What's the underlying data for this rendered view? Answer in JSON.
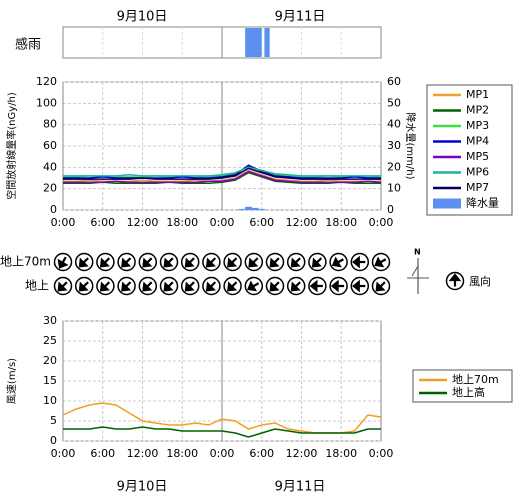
{
  "dates": [
    "9月10日",
    "9月11日"
  ],
  "chart_data": [
    {
      "type": "strip",
      "label": "感雨",
      "xlim": [
        0,
        48
      ],
      "periods": [
        [
          27.5,
          30.0
        ],
        [
          30.4,
          31.2
        ]
      ],
      "color": "#5b8ff0"
    },
    {
      "type": "line",
      "ylabel": "空間放射線量率(nGy/h)",
      "y2label": "降水量(mm/h)",
      "xlim": [
        0,
        48
      ],
      "xticks": [
        {
          "value": 0,
          "label": "0:00"
        },
        {
          "value": 6,
          "label": "6:00"
        },
        {
          "value": 12,
          "label": "12:00"
        },
        {
          "value": 18,
          "label": "18:00"
        },
        {
          "value": 24,
          "label": "0:00"
        },
        {
          "value": 30,
          "label": "6:00"
        },
        {
          "value": 36,
          "label": "12:00"
        },
        {
          "value": 42,
          "label": "18:00"
        },
        {
          "value": 48,
          "label": "0:00"
        }
      ],
      "ylim": [
        0,
        120
      ],
      "yticks": [
        0,
        20,
        40,
        60,
        80,
        100,
        120
      ],
      "y2lim": [
        0,
        60
      ],
      "y2ticks": [
        0,
        10,
        20,
        30,
        40,
        50,
        60
      ],
      "grid": true,
      "x": [
        0,
        2,
        4,
        6,
        8,
        10,
        12,
        14,
        16,
        18,
        20,
        22,
        24,
        26,
        28,
        30,
        32,
        34,
        36,
        38,
        40,
        42,
        44,
        46,
        48
      ],
      "series": [
        {
          "name": "MP1",
          "color": "#f0a030",
          "values": [
            27,
            27,
            28,
            27,
            27,
            27,
            28,
            27,
            27,
            27,
            28,
            27,
            28,
            30,
            37,
            33,
            29,
            28,
            27,
            27,
            28,
            27,
            27,
            27,
            27
          ]
        },
        {
          "name": "MP2",
          "color": "#006400",
          "values": [
            25,
            25,
            25,
            26,
            25,
            25,
            25,
            25,
            26,
            25,
            25,
            25,
            26,
            28,
            35,
            31,
            27,
            26,
            25,
            25,
            25,
            26,
            25,
            25,
            25
          ]
        },
        {
          "name": "MP3",
          "color": "#40e040",
          "values": [
            31,
            31,
            32,
            31,
            31,
            31,
            31,
            32,
            31,
            31,
            31,
            31,
            32,
            34,
            41,
            37,
            33,
            32,
            31,
            31,
            32,
            31,
            31,
            31,
            31
          ]
        },
        {
          "name": "MP4",
          "color": "#0000d0",
          "values": [
            30,
            30,
            30,
            31,
            30,
            30,
            30,
            30,
            30,
            31,
            30,
            30,
            31,
            33,
            42,
            36,
            32,
            31,
            30,
            30,
            30,
            30,
            31,
            30,
            30
          ]
        },
        {
          "name": "MP5",
          "color": "#8000c0",
          "values": [
            26,
            26,
            26,
            26,
            27,
            26,
            26,
            26,
            26,
            26,
            26,
            27,
            27,
            29,
            36,
            32,
            28,
            27,
            26,
            26,
            26,
            26,
            26,
            27,
            26
          ]
        },
        {
          "name": "MP6",
          "color": "#20b0a0",
          "values": [
            32,
            32,
            32,
            32,
            32,
            33,
            32,
            32,
            32,
            32,
            32,
            32,
            33,
            35,
            40,
            37,
            34,
            33,
            32,
            32,
            32,
            32,
            32,
            32,
            32
          ]
        },
        {
          "name": "MP7",
          "color": "#000060",
          "values": [
            29,
            29,
            29,
            29,
            29,
            29,
            30,
            29,
            29,
            29,
            29,
            29,
            30,
            32,
            39,
            35,
            31,
            30,
            29,
            29,
            29,
            29,
            29,
            29,
            29
          ]
        },
        {
          "name": "降水量",
          "type": "bar",
          "axis": "y2",
          "color": "#5b8ff0",
          "x": [
            27,
            28,
            29,
            30
          ],
          "values": [
            0.5,
            1.5,
            1,
            0.5
          ]
        }
      ]
    },
    {
      "type": "wind_direction",
      "north_label": "N",
      "legend_label": "風向",
      "rows": [
        {
          "name": "地上70m",
          "values": [
            210,
            225,
            225,
            225,
            225,
            225,
            225,
            225,
            225,
            225,
            225,
            225,
            225,
            240,
            270,
            240
          ]
        },
        {
          "name": "地上",
          "values": [
            225,
            225,
            225,
            225,
            225,
            225,
            225,
            225,
            225,
            240,
            225,
            225,
            270,
            270,
            270,
            225
          ]
        }
      ]
    },
    {
      "type": "line",
      "ylabel": "風速(m/s)",
      "xlim": [
        0,
        48
      ],
      "xticks": [
        {
          "value": 0,
          "label": "0:00"
        },
        {
          "value": 6,
          "label": "6:00"
        },
        {
          "value": 12,
          "label": "12:00"
        },
        {
          "value": 18,
          "label": "18:00"
        },
        {
          "value": 24,
          "label": "0:00"
        },
        {
          "value": 30,
          "label": "6:00"
        },
        {
          "value": 36,
          "label": "12:00"
        },
        {
          "value": 42,
          "label": "18:00"
        },
        {
          "value": 48,
          "label": "0:00"
        }
      ],
      "ylim": [
        0,
        30
      ],
      "yticks": [
        0,
        5,
        10,
        15,
        20,
        25,
        30
      ],
      "grid": true,
      "x": [
        0,
        2,
        4,
        6,
        8,
        10,
        12,
        14,
        16,
        18,
        20,
        22,
        24,
        26,
        28,
        30,
        32,
        34,
        36,
        38,
        40,
        42,
        44,
        46,
        48
      ],
      "series": [
        {
          "name": "地上70m",
          "color": "#f0a020",
          "values": [
            6.5,
            8,
            9,
            9.5,
            9,
            7,
            5,
            4.5,
            4,
            4,
            4.5,
            4,
            5.5,
            5,
            3,
            4,
            4.5,
            3,
            2.5,
            2,
            2,
            2,
            2.5,
            6.5,
            6
          ]
        },
        {
          "name": "地上高",
          "color": "#006000",
          "values": [
            3,
            3,
            3,
            3.5,
            3,
            3,
            3.5,
            3,
            3,
            2.5,
            2.5,
            2.5,
            2.5,
            2,
            1,
            2,
            3,
            2.5,
            2,
            2,
            2,
            2,
            2,
            3,
            3
          ]
        }
      ]
    }
  ]
}
